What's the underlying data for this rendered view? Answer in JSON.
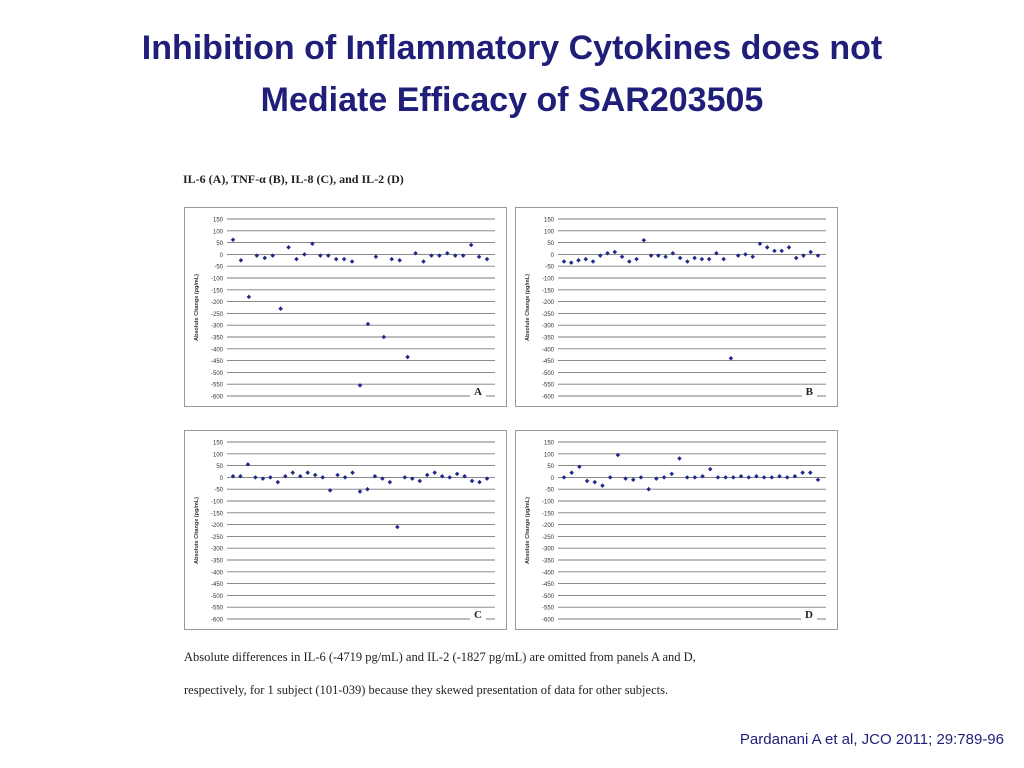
{
  "slide": {
    "title_line1": "Inhibition of Inflammatory Cytokines does not",
    "title_line2": "Mediate Efficacy of SAR203505",
    "figure_heading": "IL-6 (A), TNF-α (B), IL-8 (C), and IL-2 (D)",
    "caption_line1": "Absolute differences in IL-6 (-4719 pg/mL) and IL-2 (-1827 pg/mL) are omitted from panels A and D,",
    "caption_line2": "respectively, for 1 subject (101-039) because they skewed presentation of data for other subjects.",
    "citation": "Pardanani A et al, JCO 2011; 29:789-96"
  },
  "colors": {
    "title": "#1f1f7a",
    "points": "#1f2a8a",
    "grid": "#7a7a7a"
  },
  "chart_data": [
    {
      "type": "scatter",
      "panel": "A",
      "ylabel": "Absolute Change (pg/mL)",
      "ylim": [
        -600,
        150
      ],
      "yticks": [
        150,
        100,
        50,
        0,
        -50,
        -100,
        -150,
        -200,
        -250,
        -300,
        -350,
        -400,
        -450,
        -500,
        -550,
        -600
      ],
      "values": [
        62,
        -25,
        -180,
        -5,
        -15,
        -5,
        -230,
        30,
        -20,
        0,
        45,
        -5,
        -5,
        -20,
        -20,
        -30,
        -555,
        -295,
        -10,
        -350,
        -20,
        -25,
        -435,
        5,
        -30,
        -5,
        -5,
        5,
        -5,
        -5,
        40,
        -10,
        -20
      ]
    },
    {
      "type": "scatter",
      "panel": "B",
      "ylabel": "Absolute Change (pg/mL)",
      "ylim": [
        -600,
        150
      ],
      "yticks": [
        150,
        100,
        50,
        0,
        -50,
        -100,
        -150,
        -200,
        -250,
        -300,
        -350,
        -400,
        -450,
        -500,
        -550,
        -600
      ],
      "values": [
        -30,
        -35,
        -25,
        -20,
        -30,
        -5,
        5,
        10,
        -10,
        -30,
        -20,
        60,
        -5,
        -5,
        -10,
        5,
        -15,
        -30,
        -15,
        -20,
        -20,
        5,
        -20,
        -440,
        -5,
        0,
        -10,
        45,
        30,
        15,
        15,
        30,
        -15,
        -5,
        10,
        -5
      ]
    },
    {
      "type": "scatter",
      "panel": "C",
      "ylabel": "Absolute Change (pg/mL)",
      "ylim": [
        -600,
        150
      ],
      "yticks": [
        150,
        100,
        50,
        0,
        -50,
        -100,
        -150,
        -200,
        -250,
        -300,
        -350,
        -400,
        -450,
        -500,
        -550,
        -600
      ],
      "values": [
        5,
        5,
        55,
        0,
        -5,
        0,
        -20,
        5,
        20,
        5,
        20,
        10,
        0,
        -55,
        10,
        0,
        20,
        -60,
        -50,
        5,
        -5,
        -20,
        -210,
        0,
        -5,
        -15,
        10,
        20,
        5,
        0,
        15,
        5,
        -15,
        -20,
        -5
      ]
    },
    {
      "type": "scatter",
      "panel": "D",
      "ylabel": "Absolute Change (pg/mL)",
      "ylim": [
        -600,
        150
      ],
      "yticks": [
        150,
        100,
        50,
        0,
        -50,
        -100,
        -150,
        -200,
        -250,
        -300,
        -350,
        -400,
        -450,
        -500,
        -550,
        -600
      ],
      "values": [
        0,
        20,
        45,
        -15,
        -20,
        -35,
        0,
        95,
        -5,
        -10,
        0,
        -50,
        -5,
        0,
        15,
        80,
        0,
        0,
        5,
        35,
        0,
        0,
        0,
        5,
        0,
        5,
        0,
        0,
        5,
        0,
        5,
        20,
        20,
        -10
      ]
    }
  ]
}
